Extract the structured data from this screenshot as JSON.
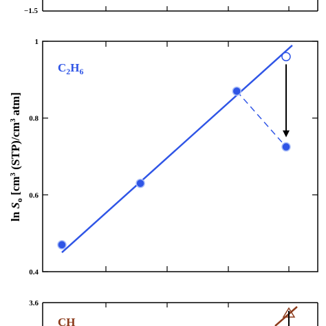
{
  "chart_data": [
    {
      "type": "axis-fragment",
      "tick_labels": [
        "−1.5"
      ]
    },
    {
      "type": "scatter",
      "annotation": "C2H6",
      "annotation_parts": {
        "c": "C",
        "n1": "2",
        "h": "H",
        "n2": "6"
      },
      "ylabel_parts": {
        "ln": "ln ",
        "s": "S",
        "sub": "o",
        "rest1": " [cm",
        "sup1": "3",
        "rest2": " (STP)/cm",
        "sup2": "3",
        "rest3": " atm]"
      },
      "ylim": [
        0.4,
        1.0
      ],
      "xlim": [
        0,
        1
      ],
      "y_ticks": [
        1,
        0.8,
        0.6,
        0.4
      ],
      "y_tick_labels": [
        "1",
        "0.8",
        "0.6",
        "0.4"
      ],
      "x_ticks": [
        0.1,
        0.4,
        0.7,
        0.9
      ],
      "colors": {
        "series": "#2f55e6",
        "arrow": "#000000",
        "line": "#2f55e6"
      },
      "fit_line": {
        "x": [
          0.0,
          1.0
        ],
        "y": [
          0.45,
          0.975
        ]
      },
      "filled_points": [
        {
          "x": 0.0,
          "y": 0.47
        },
        {
          "x": 0.35,
          "y": 0.63
        },
        {
          "x": 0.78,
          "y": 0.87
        },
        {
          "x": 1.0,
          "y": 0.725
        }
      ],
      "open_points": [
        {
          "x": 1.0,
          "y": 0.96
        }
      ],
      "dashed_segment": {
        "x": [
          0.78,
          1.0
        ],
        "y": [
          0.87,
          0.725
        ]
      },
      "arrow": {
        "x": 1.0,
        "y_from": 0.94,
        "y_to": 0.75
      }
    },
    {
      "type": "line",
      "annotation_parts": {
        "c": "C",
        "h": "H"
      },
      "y_tick_labels": [
        "3.6"
      ],
      "colors": {
        "series": "#8b3a1a"
      }
    }
  ]
}
